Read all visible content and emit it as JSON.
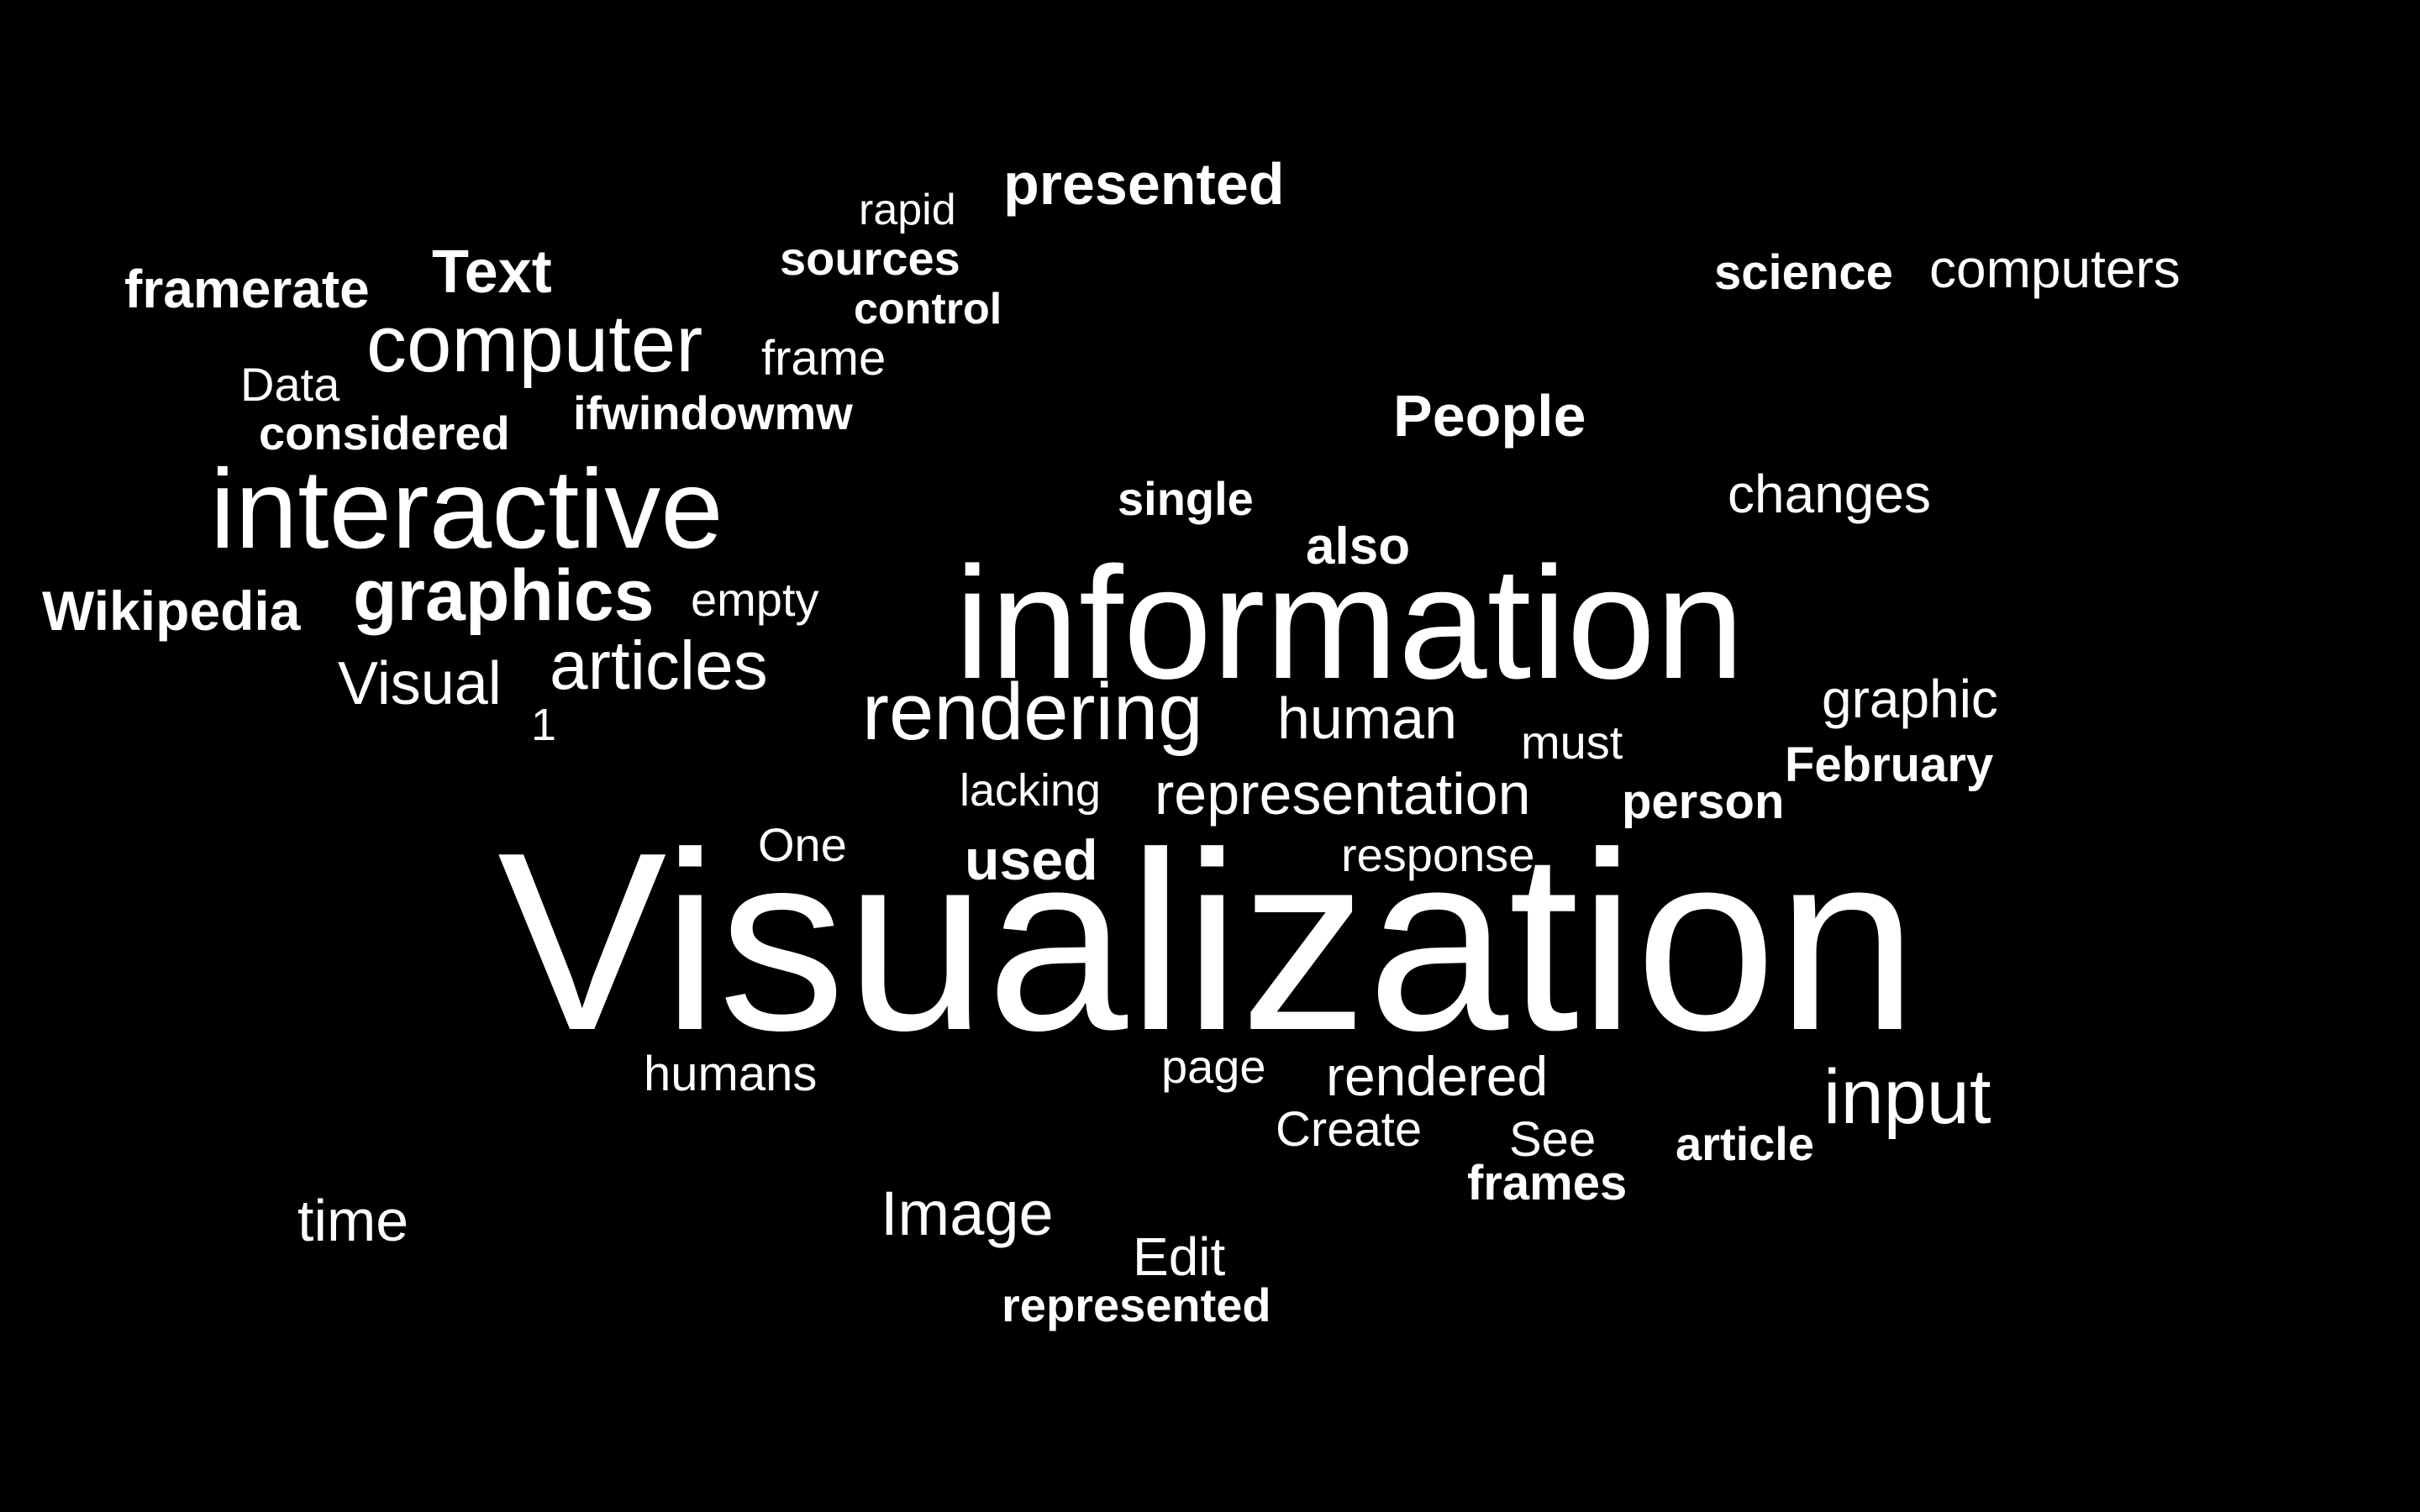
{
  "colors": {
    "background": "#000000",
    "text": "#ffffff"
  },
  "words": {
    "visualization": "Visualization",
    "information": "information",
    "interactive": "interactive",
    "computer": "computer",
    "rendering": "rendering",
    "graphics": "graphics",
    "input": "input",
    "articles": "articles",
    "representation": "representation",
    "people": "People",
    "image": "Image",
    "human": "human",
    "rendered": "rendered",
    "presented": "presented",
    "computers": "computers",
    "visual": "Visual",
    "text": "Text",
    "framerate": "framerate",
    "used": "used",
    "time": "time",
    "wikipedia": "Wikipedia",
    "graphic": "graphic",
    "changes": "changes",
    "science": "science",
    "edit": "Edit",
    "sources": "sources",
    "frames": "frames",
    "considered": "considered",
    "also": "also",
    "ifwindowmw": "ifwindowmw",
    "frame": "frame",
    "february": "February",
    "person": "person",
    "humans": "humans",
    "response": "response",
    "must": "must",
    "one": "One",
    "represented": "represented",
    "create": "Create",
    "see": "See",
    "article": "article",
    "empty": "empty",
    "single": "single",
    "data": "Data",
    "page": "page",
    "rapid": "rapid",
    "control": "control",
    "lacking": "lacking",
    "one_digit": "1"
  }
}
